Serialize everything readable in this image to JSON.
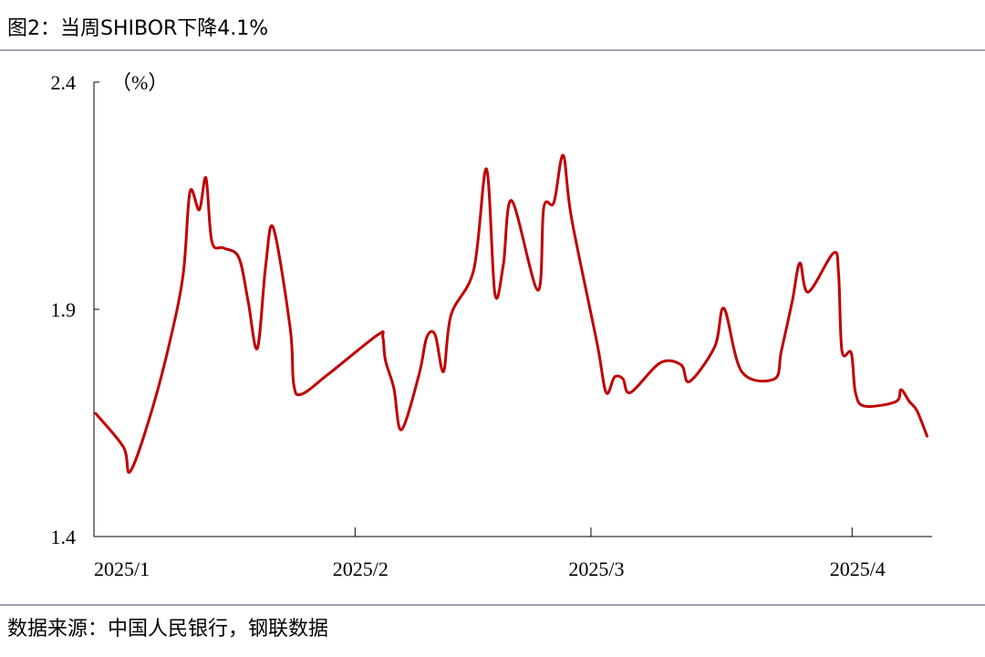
{
  "chart_data": {
    "type": "line",
    "title": "图2：当周SHIBOR下降4.1%",
    "unit_label": "（%）",
    "source": "数据来源：中国人民银行，钢联数据",
    "x": [
      0.2,
      3.5,
      4.3,
      6.7,
      9,
      10.6,
      11.4,
      12.5,
      13.3,
      14,
      15.4,
      17.2,
      18.3,
      19.4,
      20.4,
      21.3,
      23.3,
      23.7,
      24.6,
      27.8,
      33.7,
      34.3,
      34.6,
      35.6,
      36.5,
      38.6,
      39.5,
      40.5,
      41.5,
      42.4,
      45.1,
      46.6,
      47.6,
      48.6,
      49.6,
      52.7,
      53.4,
      54.6,
      55.7,
      56.7,
      59.7,
      60.8,
      61.8,
      62.8,
      63.7,
      67.2,
      69.7,
      70.7,
      73.7,
      74.8,
      76.9,
      80.8,
      81.6,
      82.9,
      83.8,
      84.8,
      87.8,
      88.4,
      88.8,
      89.9,
      90.4,
      91.5,
      95.2,
      95.8,
      96.8,
      97.7,
      98.9
    ],
    "series": [
      {
        "color": "#c00000",
        "values": [
          1.671,
          1.597,
          1.543,
          1.667,
          1.828,
          1.978,
          2.159,
          2.119,
          2.189,
          2.049,
          2.035,
          2.014,
          1.918,
          1.814,
          1.998,
          2.079,
          1.858,
          1.737,
          1.713,
          1.757,
          1.844,
          1.838,
          1.788,
          1.727,
          1.635,
          1.757,
          1.838,
          1.844,
          1.763,
          1.888,
          1.988,
          2.209,
          1.934,
          1.998,
          2.139,
          1.942,
          2.124,
          2.135,
          2.239,
          2.1,
          1.828,
          1.717,
          1.751,
          1.747,
          1.717,
          1.782,
          1.778,
          1.741,
          1.818,
          1.902,
          1.763,
          1.747,
          1.808,
          1.918,
          2.002,
          1.938,
          2.024,
          1.978,
          1.808,
          1.804,
          1.717,
          1.687,
          1.697,
          1.723,
          1.697,
          1.677,
          1.621
        ]
      }
    ],
    "xlim": [
      0,
      99.5
    ],
    "xticks": [
      {
        "value": 0,
        "label": "2025/1"
      },
      {
        "value": 31,
        "label": "2025/2"
      },
      {
        "value": 59,
        "label": "2025/3"
      },
      {
        "value": 90,
        "label": "2025/4"
      }
    ],
    "ylim": [
      1.4,
      2.4
    ],
    "yticks": [
      1.4,
      1.9,
      2.4
    ]
  }
}
